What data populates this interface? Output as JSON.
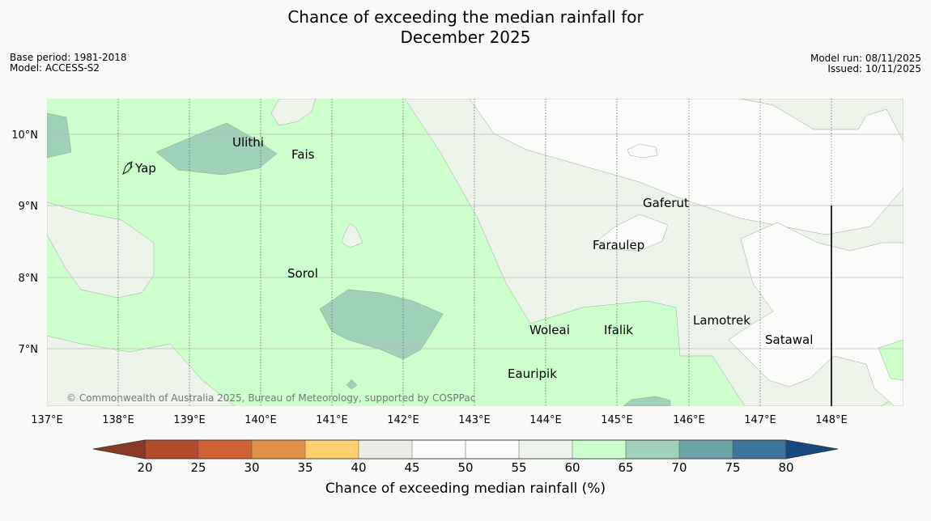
{
  "header": {
    "title_line1": "Chance of exceeding the median rainfall for",
    "title_line2": "December 2025",
    "base_period": "Base period: 1981-2018",
    "model": "Model: ACCESS-S2",
    "model_run": "Model run: 08/11/2025",
    "issued": "Issued: 10/11/2025"
  },
  "map": {
    "places": [
      "Ulithi",
      "Fais",
      "Yap",
      "Gaferut",
      "Faraulep",
      "Sorol",
      "Lamotrek",
      "Woleai",
      "Ifalik",
      "Satawal",
      "Eauripik"
    ],
    "lon_labels": [
      "137°E",
      "138°E",
      "139°E",
      "140°E",
      "141°E",
      "142°E",
      "143°E",
      "144°E",
      "145°E",
      "146°E",
      "147°E",
      "148°E"
    ],
    "lat_labels": [
      "10°N",
      "9°N",
      "8°N",
      "7°N"
    ],
    "copyright": "© Commonwealth of Australia 2025, Bureau of Meteorology, supported by COSPPac"
  },
  "colorbar": {
    "ticks": [
      "20",
      "25",
      "30",
      "35",
      "40",
      "45",
      "50",
      "55",
      "60",
      "65",
      "70",
      "75",
      "80"
    ],
    "colors": [
      "#b24a2c",
      "#cf6333",
      "#e29248",
      "#fecf6c",
      "#ecece6",
      "#fbfcfa",
      "#fbfcfa",
      "#ecf4ea",
      "#ccffcc",
      "#9fd0b8",
      "#6da4a5",
      "#3e739c"
    ],
    "low_extend_color": "#8b3a23",
    "high_extend_color": "#17497f",
    "title": "Chance of exceeding median rainfall (%)"
  }
}
